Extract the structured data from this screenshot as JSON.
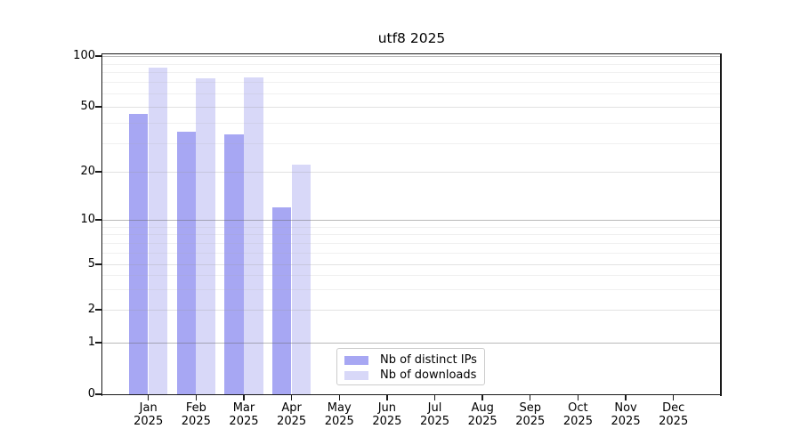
{
  "title": "utf8 2025",
  "chart_data": {
    "type": "bar",
    "title": "utf8 2025",
    "categories": [
      {
        "label": "Jan",
        "sublabel": "2025"
      },
      {
        "label": "Feb",
        "sublabel": "2025"
      },
      {
        "label": "Mar",
        "sublabel": "2025"
      },
      {
        "label": "Apr",
        "sublabel": "2025"
      },
      {
        "label": "May",
        "sublabel": "2025"
      },
      {
        "label": "Jun",
        "sublabel": "2025"
      },
      {
        "label": "Jul",
        "sublabel": "2025"
      },
      {
        "label": "Aug",
        "sublabel": "2025"
      },
      {
        "label": "Sep",
        "sublabel": "2025"
      },
      {
        "label": "Oct",
        "sublabel": "2025"
      },
      {
        "label": "Nov",
        "sublabel": "2025"
      },
      {
        "label": "Dec",
        "sublabel": "2025"
      }
    ],
    "series": [
      {
        "name": "Nb of distinct IPs",
        "color": "#a7a7f3",
        "values": [
          45,
          35,
          34,
          12,
          0,
          0,
          0,
          0,
          0,
          0,
          0,
          0
        ]
      },
      {
        "name": "Nb of downloads",
        "color": "#d8d8f8",
        "values": [
          85,
          74,
          75,
          22,
          0,
          0,
          0,
          0,
          0,
          0,
          0,
          0
        ]
      }
    ],
    "yscale": "symlog (logarithmic above 1, linear 0 to 1)",
    "yticks": [
      0,
      1,
      2,
      5,
      10,
      20,
      50,
      100
    ],
    "decade_yticks": [
      1,
      10,
      100
    ],
    "minor_yticks": [
      3,
      4,
      6,
      7,
      8,
      9,
      30,
      40,
      60,
      70,
      80,
      90
    ],
    "ylim": [
      0,
      100
    ],
    "grid": "horizontal",
    "legend_position": "inside axes, lower center"
  },
  "colors": {
    "grid_decade": "rgba(100,100,100,0.45)",
    "grid_major": "rgba(150,150,150,0.28)",
    "grid_minor": "rgba(170,170,170,0.18)",
    "spine": "#1a1a1a"
  }
}
